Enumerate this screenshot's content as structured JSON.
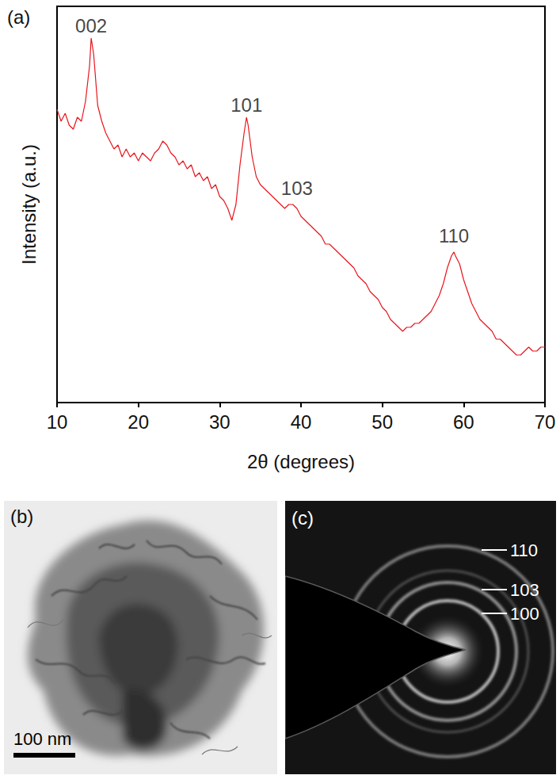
{
  "chart_data": {
    "type": "line",
    "panel_label": "(a)",
    "x_label": "2θ (degrees)",
    "y_label": "Intensity (a.u.)",
    "color": "#e8141c",
    "x": [
      10,
      10.5,
      11,
      11.5,
      12,
      12.5,
      13,
      13.5,
      14,
      14.2,
      14.5,
      15,
      15.5,
      16,
      16.5,
      17,
      17.5,
      18,
      18.5,
      19,
      19.5,
      20,
      20.5,
      21,
      21.5,
      22,
      22.5,
      23,
      23.5,
      24,
      24.5,
      25,
      25.5,
      26,
      26.5,
      27,
      27.5,
      28,
      28.5,
      29,
      29.5,
      30,
      30.5,
      31,
      31.5,
      32,
      32.5,
      33,
      33.3,
      33.5,
      34,
      34.5,
      35,
      35.5,
      36,
      36.5,
      37,
      37.5,
      38,
      38.5,
      39,
      39.5,
      40,
      40.5,
      41,
      41.5,
      42,
      42.5,
      43,
      43.5,
      44,
      44.5,
      45,
      45.5,
      46,
      46.5,
      47,
      47.5,
      48,
      48.5,
      49,
      49.5,
      50,
      50.5,
      51,
      51.5,
      52,
      52.5,
      53,
      53.5,
      54,
      54.5,
      55,
      55.5,
      56,
      56.5,
      57,
      57.5,
      58,
      58.5,
      58.8,
      59,
      59.5,
      60,
      60.5,
      61,
      61.5,
      62,
      62.5,
      63,
      63.5,
      64,
      64.5,
      65,
      65.5,
      66,
      66.5,
      67,
      67.5,
      68,
      68.5,
      69,
      69.5,
      70
    ],
    "values": [
      74,
      71,
      73,
      70,
      69,
      72,
      71,
      76,
      85,
      92,
      88,
      75,
      71,
      68,
      66,
      64,
      65,
      62,
      64,
      62,
      63,
      61,
      63,
      62,
      61,
      63,
      64,
      66,
      65,
      63,
      62,
      60,
      61,
      59,
      60,
      57,
      58,
      56,
      57,
      54,
      55,
      52,
      51,
      49,
      46,
      50,
      60,
      68,
      72,
      70,
      62,
      57,
      55,
      54,
      53,
      52,
      51,
      50,
      49,
      50,
      50,
      49,
      47,
      46,
      45,
      44,
      43,
      42,
      40,
      40,
      39,
      38,
      37,
      36,
      35,
      34,
      32,
      31,
      30,
      28,
      27,
      26,
      24,
      23,
      21,
      20,
      19,
      18,
      19,
      19,
      20,
      20,
      21,
      22,
      23,
      25,
      27,
      30,
      34,
      37,
      38,
      37,
      35,
      31,
      28,
      25,
      23,
      21,
      20,
      19,
      18,
      16,
      16,
      15,
      14,
      13,
      12,
      12,
      13,
      14,
      13,
      13,
      14,
      14
    ],
    "xlim": [
      10,
      70
    ],
    "xticks": [
      10,
      20,
      30,
      40,
      50,
      60,
      70
    ],
    "ylim": [
      0,
      100
    ],
    "tick_labels": "x",
    "grid": false,
    "annotations": [
      {
        "text": "002",
        "x": 14.2,
        "y": 92
      },
      {
        "text": "101",
        "x": 33.3,
        "y": 72
      },
      {
        "text": "103",
        "x": 39.5,
        "y": 51
      },
      {
        "text": "110",
        "x": 58.8,
        "y": 39
      }
    ]
  },
  "images": [
    {
      "panel_label": "(b)",
      "scale_bar": "100 nm"
    },
    {
      "panel_label": "(c)",
      "ring_labels": [
        "110",
        "103",
        "100"
      ]
    }
  ]
}
